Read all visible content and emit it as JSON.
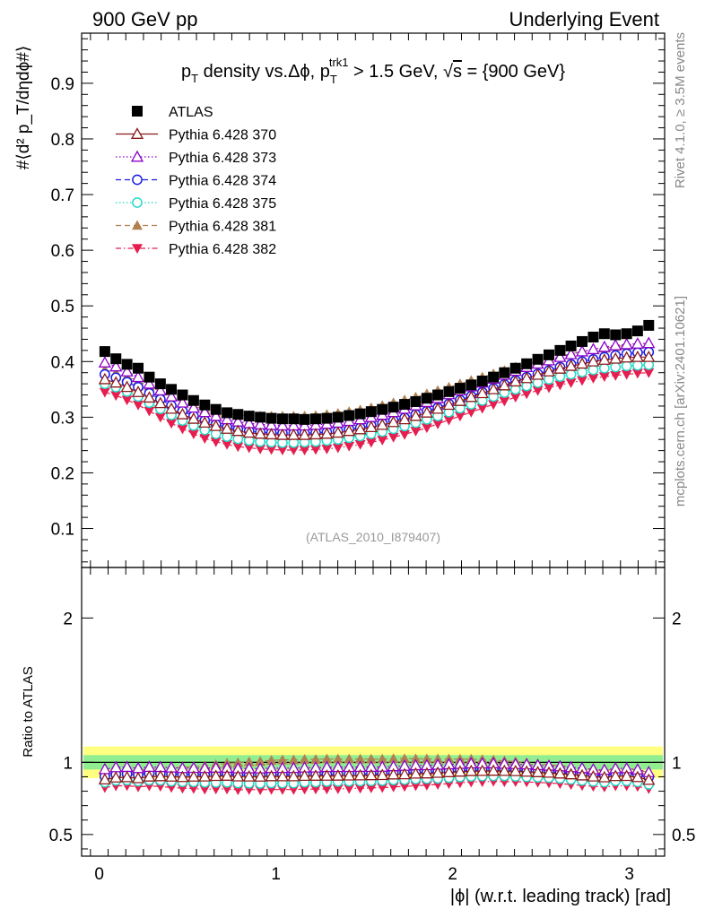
{
  "header": {
    "left": "900 GeV pp",
    "right": "Underlying Event"
  },
  "side_labels": {
    "rivet": "Rivet 4.1.0, ≥ 3.5M events",
    "mcplots": "mcplots.cern.ch [arXiv:2401.10621]"
  },
  "chart_data": {
    "type": "scatter",
    "title_parts": {
      "a": "p",
      "a_sub": "T",
      "b": " density vs.Δϕ, p",
      "b_sub": "T",
      "b_sup": "trk1",
      "c": " > 1.5 GeV, ",
      "sqrt": "√",
      "s": "s",
      "d": " = {900 GeV}"
    },
    "ylabel_main": "#⟨d² p_T/dηdϕ#⟩",
    "ylabel_ratio": "Ratio to ATLAS",
    "xlabel": "|ϕ| (w.r.t. leading track) [rad]",
    "watermark": "(ATLAS_2010_I879407)",
    "xlim": [
      -0.1,
      3.2
    ],
    "ylim_main": [
      0.03,
      0.99
    ],
    "ylim_ratio": [
      0.35,
      2.35
    ],
    "main_ticks": [
      "0.1",
      "0.2",
      "0.3",
      "0.4",
      "0.5",
      "0.6",
      "0.7",
      "0.8",
      "0.9"
    ],
    "ratio_ticks": [
      "0.5",
      "1",
      "2"
    ],
    "x_ticks": [
      "0",
      "1",
      "2",
      "3"
    ],
    "x": [
      0.0314,
      0.0942,
      0.157,
      0.22,
      0.283,
      0.346,
      0.408,
      0.471,
      0.534,
      0.597,
      0.66,
      0.723,
      0.785,
      0.848,
      0.911,
      0.974,
      1.037,
      1.1,
      1.162,
      1.225,
      1.288,
      1.351,
      1.414,
      1.477,
      1.539,
      1.602,
      1.665,
      1.728,
      1.791,
      1.854,
      1.916,
      1.979,
      2.042,
      2.105,
      2.168,
      2.231,
      2.293,
      2.356,
      2.419,
      2.482,
      2.545,
      2.608,
      2.67,
      2.733,
      2.796,
      2.859,
      2.922,
      2.985,
      3.047,
      3.11
    ],
    "series": [
      {
        "name": "ATLAS",
        "label": "ATLAS",
        "color": "#000000",
        "marker": "square",
        "line": "none",
        "values": [
          0.418,
          0.405,
          0.395,
          0.388,
          0.372,
          0.36,
          0.35,
          0.34,
          0.33,
          0.322,
          0.314,
          0.308,
          0.305,
          0.302,
          0.3,
          0.298,
          0.297,
          0.297,
          0.296,
          0.297,
          0.298,
          0.3,
          0.303,
          0.306,
          0.31,
          0.314,
          0.318,
          0.323,
          0.328,
          0.334,
          0.34,
          0.346,
          0.352,
          0.358,
          0.365,
          0.372,
          0.38,
          0.388,
          0.396,
          0.404,
          0.412,
          0.42,
          0.428,
          0.436,
          0.444,
          0.45,
          0.448,
          0.45,
          0.455,
          0.465
        ]
      },
      {
        "name": "p370",
        "label": "Pythia 6.428 370",
        "color": "#8b1a1a",
        "marker": "triangle-open",
        "line": "solid",
        "values": [
          0.368,
          0.362,
          0.354,
          0.345,
          0.335,
          0.325,
          0.315,
          0.305,
          0.297,
          0.29,
          0.284,
          0.279,
          0.275,
          0.272,
          0.27,
          0.269,
          0.268,
          0.268,
          0.268,
          0.269,
          0.27,
          0.272,
          0.275,
          0.278,
          0.282,
          0.286,
          0.291,
          0.296,
          0.302,
          0.308,
          0.315,
          0.322,
          0.329,
          0.336,
          0.343,
          0.35,
          0.357,
          0.364,
          0.37,
          0.376,
          0.382,
          0.387,
          0.392,
          0.396,
          0.4,
          0.403,
          0.405,
          0.407,
          0.408,
          0.408
        ]
      },
      {
        "name": "p373",
        "label": "Pythia 6.428 373",
        "color": "#8b00c8",
        "marker": "triangle-open",
        "line": "dotted",
        "values": [
          0.398,
          0.391,
          0.382,
          0.372,
          0.36,
          0.348,
          0.337,
          0.326,
          0.317,
          0.309,
          0.302,
          0.296,
          0.292,
          0.289,
          0.287,
          0.286,
          0.285,
          0.285,
          0.285,
          0.286,
          0.288,
          0.29,
          0.293,
          0.296,
          0.3,
          0.304,
          0.309,
          0.315,
          0.321,
          0.327,
          0.334,
          0.341,
          0.348,
          0.355,
          0.362,
          0.369,
          0.376,
          0.383,
          0.39,
          0.396,
          0.402,
          0.408,
          0.413,
          0.418,
          0.422,
          0.426,
          0.429,
          0.431,
          0.432,
          0.433
        ]
      },
      {
        "name": "p374",
        "label": "Pythia 6.428 374",
        "color": "#1a1ae6",
        "marker": "circle-open",
        "line": "dashed",
        "values": [
          0.377,
          0.371,
          0.363,
          0.354,
          0.343,
          0.332,
          0.321,
          0.311,
          0.302,
          0.294,
          0.287,
          0.282,
          0.278,
          0.275,
          0.273,
          0.272,
          0.271,
          0.271,
          0.271,
          0.272,
          0.273,
          0.275,
          0.278,
          0.281,
          0.285,
          0.289,
          0.294,
          0.299,
          0.305,
          0.311,
          0.317,
          0.324,
          0.331,
          0.338,
          0.345,
          0.352,
          0.359,
          0.366,
          0.372,
          0.378,
          0.384,
          0.39,
          0.395,
          0.4,
          0.404,
          0.408,
          0.411,
          0.414,
          0.416,
          0.417
        ]
      },
      {
        "name": "p375",
        "label": "Pythia 6.428 375",
        "color": "#22d8c8",
        "marker": "circle-open",
        "line": "dotted",
        "values": [
          0.36,
          0.354,
          0.346,
          0.337,
          0.326,
          0.315,
          0.304,
          0.294,
          0.285,
          0.277,
          0.27,
          0.265,
          0.261,
          0.258,
          0.256,
          0.255,
          0.254,
          0.254,
          0.255,
          0.256,
          0.258,
          0.26,
          0.263,
          0.266,
          0.27,
          0.274,
          0.279,
          0.284,
          0.29,
          0.296,
          0.302,
          0.309,
          0.316,
          0.323,
          0.33,
          0.337,
          0.344,
          0.35,
          0.356,
          0.362,
          0.368,
          0.373,
          0.377,
          0.381,
          0.385,
          0.388,
          0.39,
          0.392,
          0.393,
          0.394
        ]
      },
      {
        "name": "p381",
        "label": "Pythia 6.428 381",
        "color": "#b08050",
        "marker": "triangle-filled",
        "line": "dashed",
        "values": [
          0.385,
          0.38,
          0.373,
          0.365,
          0.356,
          0.346,
          0.337,
          0.328,
          0.32,
          0.314,
          0.309,
          0.306,
          0.304,
          0.303,
          0.302,
          0.302,
          0.302,
          0.302,
          0.302,
          0.303,
          0.305,
          0.307,
          0.31,
          0.313,
          0.317,
          0.321,
          0.326,
          0.331,
          0.336,
          0.342,
          0.348,
          0.354,
          0.36,
          0.366,
          0.372,
          0.378,
          0.384,
          0.39,
          0.395,
          0.4,
          0.405,
          0.41,
          0.414,
          0.418,
          0.421,
          0.424,
          0.427,
          0.429,
          0.431,
          0.432
        ]
      },
      {
        "name": "p382",
        "label": "Pythia 6.428 382",
        "color": "#e61e50",
        "marker": "triangle-down-filled",
        "line": "dashdot",
        "values": [
          0.345,
          0.339,
          0.331,
          0.322,
          0.311,
          0.3,
          0.289,
          0.279,
          0.27,
          0.262,
          0.256,
          0.251,
          0.247,
          0.245,
          0.243,
          0.242,
          0.241,
          0.241,
          0.241,
          0.242,
          0.243,
          0.245,
          0.248,
          0.251,
          0.255,
          0.259,
          0.264,
          0.269,
          0.275,
          0.281,
          0.288,
          0.295,
          0.302,
          0.309,
          0.316,
          0.323,
          0.329,
          0.336,
          0.342,
          0.348,
          0.353,
          0.358,
          0.362,
          0.366,
          0.37,
          0.373,
          0.375,
          0.377,
          0.379,
          0.38
        ]
      }
    ]
  }
}
